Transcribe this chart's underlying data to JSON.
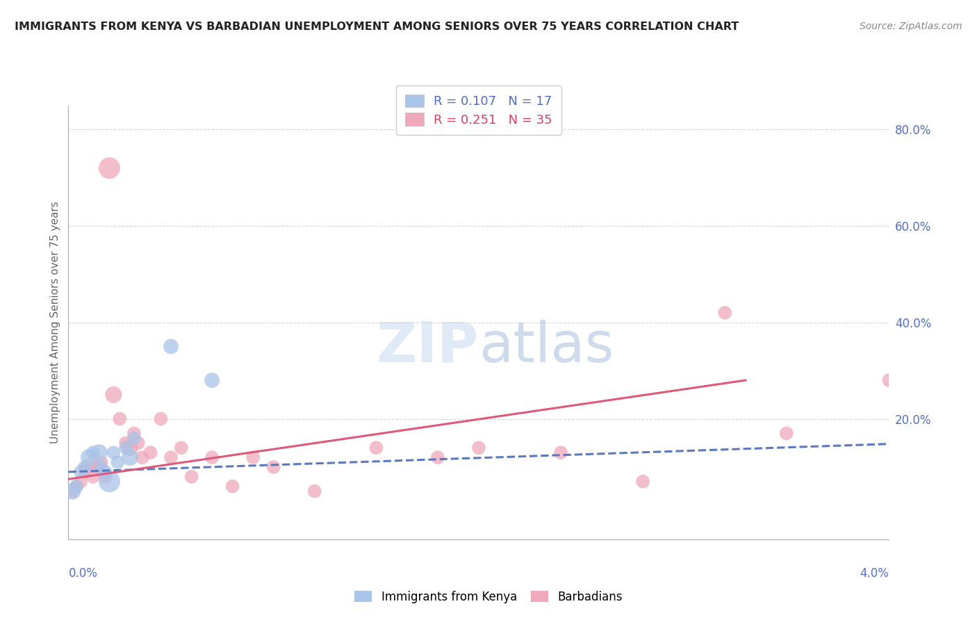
{
  "title": "IMMIGRANTS FROM KENYA VS BARBADIAN UNEMPLOYMENT AMONG SENIORS OVER 75 YEARS CORRELATION CHART",
  "source": "Source: ZipAtlas.com",
  "ylabel": "Unemployment Among Seniors over 75 years",
  "xlim": [
    0.0,
    0.04
  ],
  "ylim": [
    -0.05,
    0.85
  ],
  "yticks": [
    0.2,
    0.4,
    0.6,
    0.8
  ],
  "ytick_labels": [
    "20.0%",
    "40.0%",
    "60.0%",
    "80.0%"
  ],
  "legend_r1": "R = 0.107",
  "legend_n1": "N = 17",
  "legend_r2": "R = 0.251",
  "legend_n2": "N = 35",
  "color_blue": "#a8c4e8",
  "color_pink": "#f0a8bc",
  "color_blue_line": "#5878c0",
  "color_pink_line": "#e05878",
  "color_blue_text": "#5070c8",
  "color_pink_text": "#d84060",
  "kenya_x": [
    0.0002,
    0.0004,
    0.0006,
    0.0008,
    0.001,
    0.0012,
    0.0015,
    0.0016,
    0.0018,
    0.002,
    0.0022,
    0.0024,
    0.0028,
    0.003,
    0.0032,
    0.005,
    0.007
  ],
  "kenya_y": [
    0.05,
    0.06,
    0.09,
    0.1,
    0.12,
    0.13,
    0.13,
    0.1,
    0.09,
    0.07,
    0.13,
    0.11,
    0.14,
    0.12,
    0.16,
    0.35,
    0.28
  ],
  "kenya_size": [
    300,
    200,
    200,
    200,
    300,
    200,
    300,
    200,
    200,
    500,
    200,
    200,
    200,
    300,
    200,
    250,
    250
  ],
  "barbadian_x": [
    0.0002,
    0.0004,
    0.0006,
    0.0008,
    0.001,
    0.0012,
    0.0014,
    0.0016,
    0.0018,
    0.002,
    0.0022,
    0.0025,
    0.0028,
    0.003,
    0.0032,
    0.0034,
    0.0036,
    0.004,
    0.0045,
    0.005,
    0.0055,
    0.006,
    0.007,
    0.008,
    0.009,
    0.01,
    0.012,
    0.015,
    0.018,
    0.02,
    0.024,
    0.028,
    0.032,
    0.035,
    0.04
  ],
  "barbadian_y": [
    0.05,
    0.06,
    0.07,
    0.09,
    0.1,
    0.08,
    0.1,
    0.11,
    0.08,
    0.72,
    0.25,
    0.2,
    0.15,
    0.14,
    0.17,
    0.15,
    0.12,
    0.13,
    0.2,
    0.12,
    0.14,
    0.08,
    0.12,
    0.06,
    0.12,
    0.1,
    0.05,
    0.14,
    0.12,
    0.14,
    0.13,
    0.07,
    0.42,
    0.17,
    0.28
  ],
  "barbadian_size": [
    200,
    200,
    200,
    200,
    300,
    200,
    200,
    200,
    200,
    500,
    300,
    200,
    200,
    300,
    200,
    200,
    200,
    200,
    200,
    200,
    200,
    200,
    200,
    200,
    200,
    200,
    200,
    200,
    200,
    200,
    200,
    200,
    200,
    200,
    200
  ],
  "trendline_kenya_x0": 0.0,
  "trendline_kenya_y0": 0.09,
  "trendline_kenya_x1": 0.04,
  "trendline_kenya_y1": 0.148,
  "trendline_barb_x0": 0.0,
  "trendline_barb_y0": 0.075,
  "trendline_barb_x1": 0.033,
  "trendline_barb_y1": 0.28,
  "watermark_text": "ZIPatlas",
  "background_color": "#ffffff",
  "grid_color": "#cccccc"
}
